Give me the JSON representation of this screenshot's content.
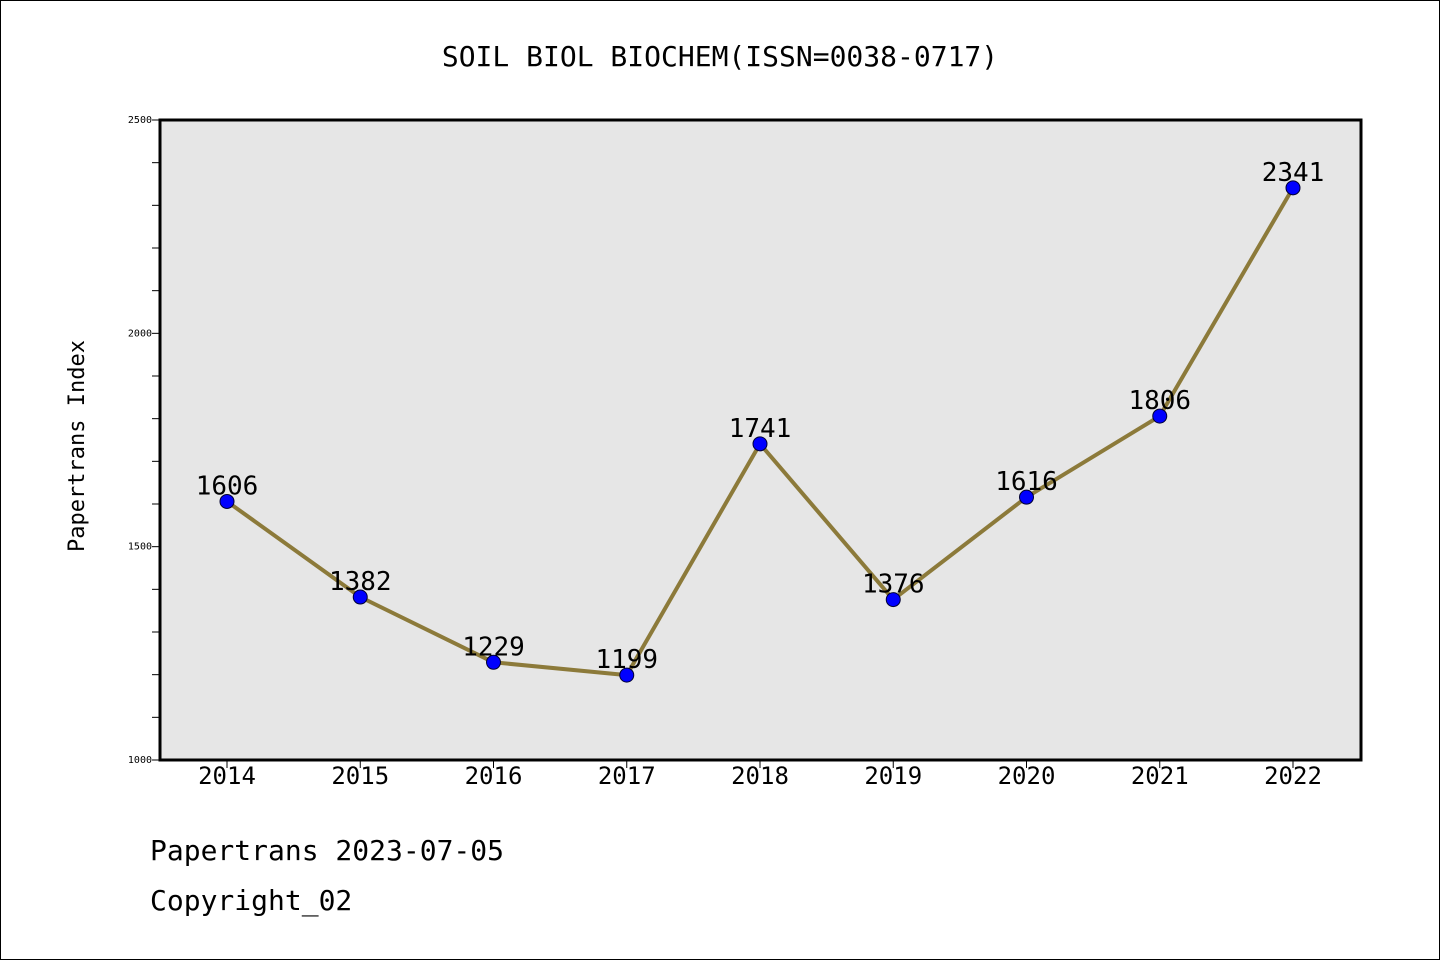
{
  "chart_data": {
    "type": "line",
    "title": "SOIL BIOL BIOCHEM(ISSN=0038-0717)",
    "xlabel": "",
    "ylabel": "Papertrans Index",
    "categories": [
      "2014",
      "2015",
      "2016",
      "2017",
      "2018",
      "2019",
      "2020",
      "2021",
      "2022"
    ],
    "series": [
      {
        "values": [
          1606,
          1382,
          1229,
          1199,
          1741,
          1376,
          1616,
          1806,
          2341
        ]
      }
    ],
    "ylim": [
      1000,
      2500
    ],
    "y_major_ticks": [
      1000,
      1500,
      2000,
      2500
    ],
    "y_minor_step": 100,
    "grid": false,
    "legend": "none",
    "colors": {
      "plot_background": "#e6e6e6",
      "line": "#8c7a3a",
      "marker": "#0000ff",
      "axes": "#000000"
    }
  },
  "footer": {
    "date_line": "Papertrans 2023-07-05",
    "copyright_line": "Copyright_02"
  }
}
